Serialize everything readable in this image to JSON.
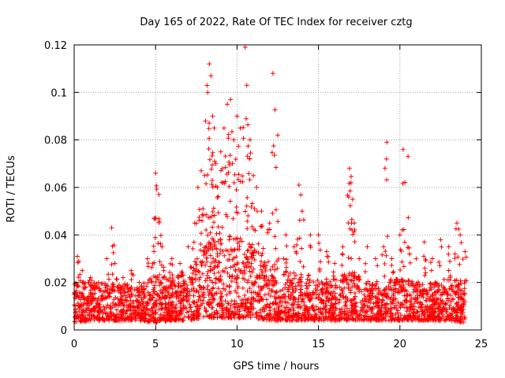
{
  "chart_data": {
    "type": "scatter",
    "title": "Day 165 of 2022, Rate Of TEC Index for receiver cztg",
    "xlabel": "GPS time / hours",
    "ylabel": "ROTI / TECUs",
    "xlim": [
      0,
      25
    ],
    "ylim": [
      0,
      0.12
    ],
    "xticks": [
      0,
      5,
      10,
      15,
      20,
      25
    ],
    "xtick_labels": [
      "0",
      "5",
      "10",
      "15",
      "20",
      "25"
    ],
    "yticks": [
      0,
      0.02,
      0.04,
      0.06,
      0.08,
      0.1,
      0.12
    ],
    "ytick_labels": [
      "0",
      "0.02",
      "0.04",
      "0.06",
      "0.08",
      "0.1",
      "0.12"
    ],
    "grid": true,
    "marker": "+",
    "series": [
      {
        "name": "ROTI",
        "color": "#ff0000",
        "x": [
          0.2,
          0.5,
          1.0,
          1.5,
          2.0,
          2.3,
          2.5,
          3.0,
          3.5,
          4.0,
          4.5,
          4.9,
          5.0,
          5.2,
          5.4,
          5.5,
          6.0,
          6.5,
          7.0,
          7.4,
          7.6,
          7.8,
          8.0,
          8.2,
          8.3,
          8.4,
          8.5,
          8.6,
          8.7,
          8.8,
          9.0,
          9.2,
          9.4,
          9.6,
          9.8,
          10.0,
          10.2,
          10.5,
          10.6,
          10.8,
          11.0,
          11.2,
          11.5,
          12.0,
          12.2,
          12.5,
          13.0,
          13.5,
          13.8,
          14.0,
          14.5,
          15.0,
          15.5,
          16.0,
          16.5,
          16.9,
          17.0,
          17.1,
          17.2,
          17.5,
          18.0,
          18.5,
          19.0,
          19.2,
          19.5,
          20.0,
          20.2,
          20.5,
          21.0,
          21.5,
          22.0,
          22.5,
          23.0,
          23.5,
          23.7,
          24.0
        ],
        "y": [
          0.031,
          0.025,
          0.022,
          0.02,
          0.03,
          0.043,
          0.028,
          0.022,
          0.025,
          0.02,
          0.03,
          0.047,
          0.066,
          0.057,
          0.035,
          0.025,
          0.03,
          0.028,
          0.035,
          0.045,
          0.06,
          0.067,
          0.065,
          0.1,
          0.112,
          0.107,
          0.09,
          0.085,
          0.07,
          0.06,
          0.075,
          0.085,
          0.095,
          0.097,
          0.08,
          0.09,
          0.085,
          0.119,
          0.103,
          0.08,
          0.065,
          0.06,
          0.05,
          0.045,
          0.108,
          0.082,
          0.04,
          0.035,
          0.061,
          0.05,
          0.04,
          0.04,
          0.033,
          0.028,
          0.035,
          0.068,
          0.062,
          0.055,
          0.045,
          0.03,
          0.035,
          0.03,
          0.035,
          0.079,
          0.03,
          0.04,
          0.076,
          0.073,
          0.03,
          0.037,
          0.03,
          0.038,
          0.035,
          0.045,
          0.04,
          0.033
        ]
      }
    ],
    "density_envelope": {
      "hours": [
        0,
        1,
        2,
        3,
        4,
        5,
        6,
        7,
        8,
        9,
        10,
        11,
        12,
        13,
        14,
        15,
        16,
        17,
        18,
        19,
        20,
        21,
        22,
        23,
        24
      ],
      "upper": [
        0.02,
        0.021,
        0.02,
        0.02,
        0.018,
        0.024,
        0.022,
        0.025,
        0.035,
        0.04,
        0.04,
        0.035,
        0.03,
        0.025,
        0.022,
        0.02,
        0.022,
        0.025,
        0.02,
        0.02,
        0.022,
        0.02,
        0.02,
        0.022,
        0.02
      ],
      "lower": [
        0.003,
        0.004,
        0.004,
        0.004,
        0.004,
        0.003,
        0.004,
        0.004,
        0.005,
        0.005,
        0.005,
        0.005,
        0.004,
        0.004,
        0.004,
        0.004,
        0.004,
        0.004,
        0.004,
        0.004,
        0.004,
        0.004,
        0.004,
        0.004,
        0.003
      ]
    }
  }
}
